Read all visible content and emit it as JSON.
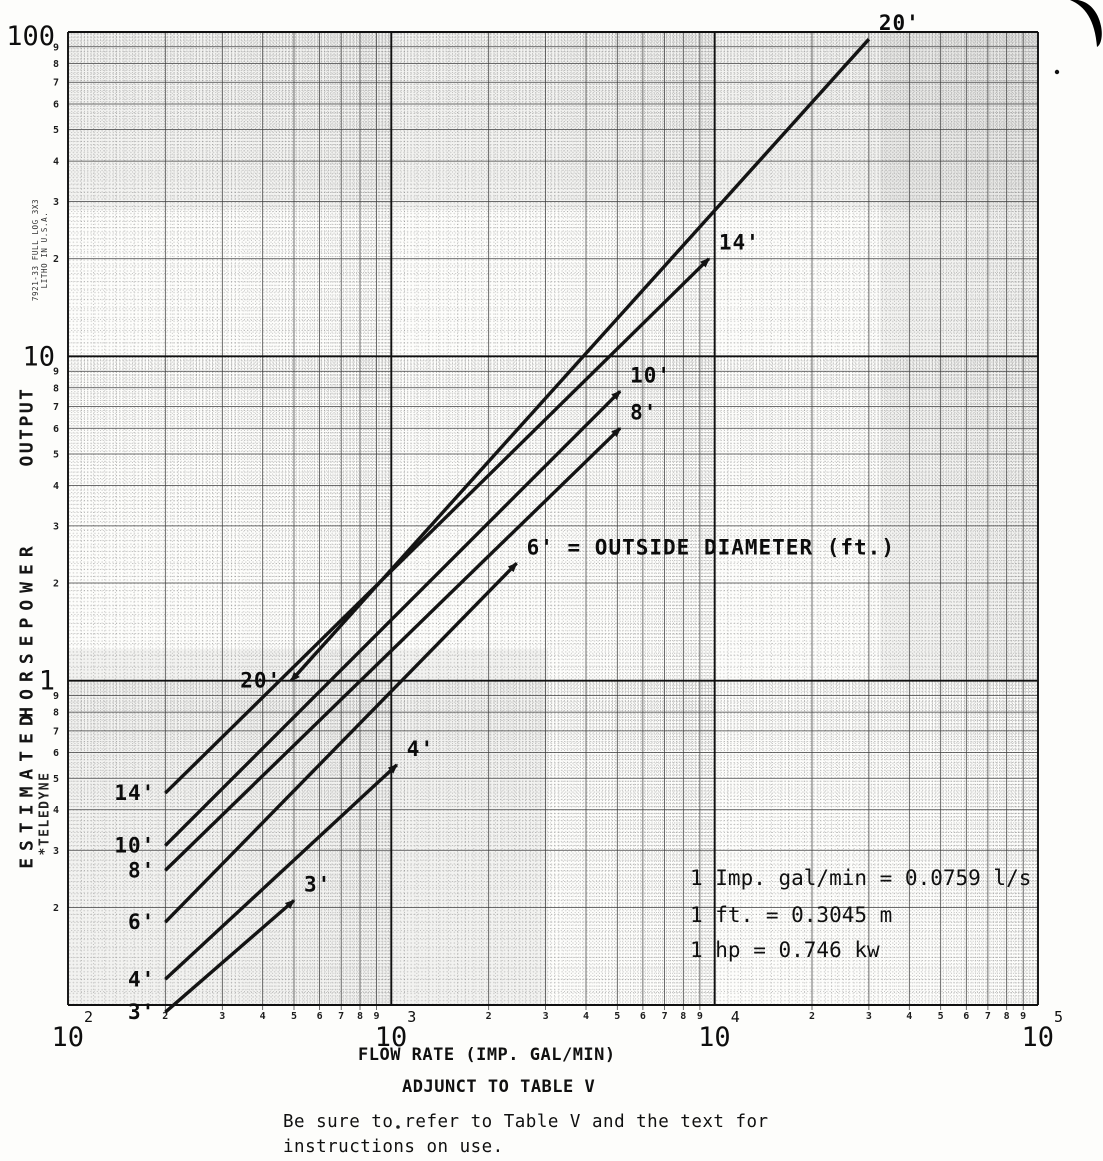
{
  "page": {
    "paper_note": {
      "line1": "7921-33 FULL LOG 3X3",
      "line2": "LITHO IN U.S.A."
    },
    "brand_stamp": "*TELEDYNE",
    "y_axis_words": {
      "word1": "OUTPUT",
      "word2": "HORSEPOWER",
      "word3": "ESTIMATED"
    },
    "captions": {
      "x_axis_title": "FLOW RATE (IMP. GAL/MIN)",
      "subtitle": "ADJUNCT TO TABLE V",
      "note_line1": "Be sure to refer to Table V and the text for",
      "note_line2": "instructions on use."
    }
  },
  "chart_data": {
    "type": "line",
    "title": "ADJUNCT TO TABLE V",
    "xlabel": "FLOW RATE (IMP. GAL/MIN)",
    "ylabel": "ESTIMATED HORSEPOWER OUTPUT",
    "x_scale": "log",
    "y_scale": "log",
    "xlim": [
      100,
      100000
    ],
    "ylim": [
      0.1,
      100
    ],
    "grid": "full-log fine grid on",
    "x_decade_exponents": [
      2,
      3,
      4,
      5
    ],
    "y_decade_values": [
      100,
      10,
      1
    ],
    "y_decade_labels": [
      "100",
      "10",
      "1"
    ],
    "x_minor_digits": [
      2,
      3,
      4,
      5,
      6,
      7,
      8,
      9
    ],
    "y_minor_digits": [
      9,
      8,
      7,
      6,
      5,
      4,
      3,
      2
    ],
    "series_meaning": "line label = OUTSIDE DIAMETER (ft.)",
    "series": [
      {
        "name": "3'",
        "points": [
          [
            200,
            0.095
          ],
          [
            500,
            0.21
          ]
        ],
        "arrow_end": true
      },
      {
        "name": "4'",
        "points": [
          [
            200,
            0.12
          ],
          [
            1040,
            0.55
          ]
        ],
        "arrow_end": true
      },
      {
        "name": "6'",
        "points": [
          [
            200,
            0.18
          ],
          [
            2440,
            2.3
          ]
        ],
        "arrow_end": true,
        "end_label": "6'  =  OUTSIDE DIAMETER (ft.)"
      },
      {
        "name": "8'",
        "points": [
          [
            200,
            0.26
          ],
          [
            5100,
            6.0
          ]
        ],
        "arrow_end": true
      },
      {
        "name": "10'",
        "points": [
          [
            200,
            0.31
          ],
          [
            5100,
            7.8
          ]
        ],
        "arrow_end": true
      },
      {
        "name": "14'",
        "points": [
          [
            200,
            0.45
          ],
          [
            9600,
            20
          ]
        ],
        "arrow_end": true
      },
      {
        "name": "20'",
        "points": [
          [
            490,
            1.0
          ],
          [
            30000,
            95
          ]
        ],
        "arrow_start": true
      }
    ],
    "annotations": [
      "1 Imp. gal/min = 0.0759 l/s",
      "1 ft. = 0.3045 m",
      "1 hp = 0.746 kw"
    ]
  }
}
